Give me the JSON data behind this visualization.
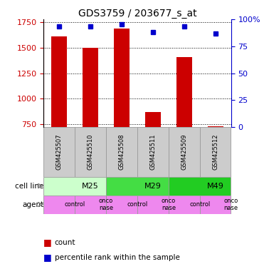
{
  "title": "GDS3759 / 203677_s_at",
  "samples": [
    "GSM425507",
    "GSM425510",
    "GSM425508",
    "GSM425511",
    "GSM425509",
    "GSM425512"
  ],
  "counts": [
    1610,
    1500,
    1690,
    870,
    1410,
    730
  ],
  "percentile_ranks": [
    93,
    93,
    95,
    88,
    93,
    87
  ],
  "bar_color": "#cc0000",
  "dot_color": "#0000cc",
  "ylim_left": [
    720,
    1780
  ],
  "yticks_left": [
    750,
    1000,
    1250,
    1500,
    1750
  ],
  "ylim_right": [
    0,
    100
  ],
  "yticks_right": [
    0,
    25,
    50,
    75,
    100
  ],
  "cell_lines": [
    {
      "label": "M25",
      "span": [
        0,
        2
      ],
      "color": "#ccffcc"
    },
    {
      "label": "M29",
      "span": [
        2,
        4
      ],
      "color": "#44dd44"
    },
    {
      "label": "M49",
      "span": [
        4,
        6
      ],
      "color": "#22cc22"
    }
  ],
  "agents": [
    {
      "label": "control",
      "span": [
        0,
        1
      ]
    },
    {
      "label": "onconase",
      "span": [
        1,
        2
      ]
    },
    {
      "label": "control",
      "span": [
        2,
        3
      ]
    },
    {
      "label": "onconase",
      "span": [
        3,
        4
      ]
    },
    {
      "label": "control",
      "span": [
        4,
        5
      ]
    },
    {
      "label": "onconase",
      "span": [
        5,
        6
      ]
    }
  ],
  "agent_color": "#ee88ee",
  "sample_box_color": "#cccccc",
  "row_label_cell_line": "cell line",
  "row_label_agent": "agent",
  "legend_count_label": "count",
  "legend_percentile_label": "percentile rank within the sample",
  "bar_width": 0.5,
  "background_color": "#ffffff",
  "tick_color_left": "#cc0000",
  "tick_color_right": "#0000cc"
}
